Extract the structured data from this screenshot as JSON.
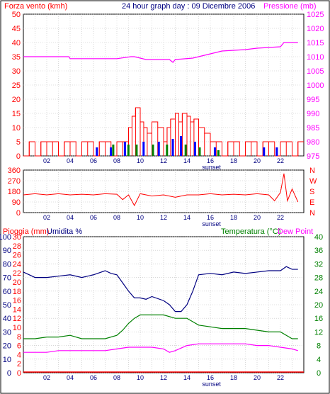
{
  "header": {
    "left_label": "Forza vento (kmh)",
    "title": "24 hour graph day : 09 Dicembre 2006",
    "right_label": "Pressione (mb)"
  },
  "colors": {
    "wind": "#ff0000",
    "gust_blue": "#0000ff",
    "gust_green": "#008000",
    "pressure": "#ff00ff",
    "direction": "#ff0000",
    "humidity": "#000080",
    "temperature": "#008000",
    "dew_point": "#ff00ff",
    "rain": "#ff0000",
    "grid": "#c0c0c0",
    "frame": "#000000",
    "axis_text_red": "#ff0000",
    "axis_text_magenta": "#ff00ff",
    "axis_text_navy": "#000080",
    "axis_text_green": "#008000"
  },
  "x_labels": [
    "02",
    "04",
    "06",
    "08",
    "10",
    "12",
    "14",
    "16",
    "18",
    "20",
    "22"
  ],
  "sunset_label": "sunset",
  "chart_data": [
    {
      "type": "line",
      "panel": "wind_pressure",
      "ylabel_left": "Forza vento (kmh)",
      "ylabel_right": "Pressione (mb)",
      "ylim_left": [
        0,
        50
      ],
      "ylim_right": [
        975,
        1025
      ],
      "y_ticks_left": [
        "0",
        "5",
        "10",
        "15",
        "20",
        "25",
        "30",
        "35",
        "40",
        "45",
        "50"
      ],
      "y_ticks_right": [
        "975",
        "980",
        "985",
        "990",
        "995",
        "1000",
        "1005",
        "1010",
        "1015",
        "1020",
        "1025"
      ],
      "xlim": [
        0,
        24
      ],
      "series": [
        {
          "name": "Pressione (mb)",
          "x": [
            0,
            3.9,
            4.0,
            8.0,
            9.2,
            9.5,
            10.5,
            12.5,
            12.8,
            13.0,
            14.5,
            15.5,
            17.0,
            19.0,
            20.0,
            22.0,
            22.3,
            23.5
          ],
          "y": [
            1010,
            1010,
            1009.3,
            1009.3,
            1010,
            1010,
            1009,
            1009,
            1008,
            1009,
            1009.5,
            1010.5,
            1012,
            1012.5,
            1013,
            1013.5,
            1015,
            1015
          ]
        },
        {
          "name": "wind",
          "x": [
            0,
            0.5,
            1,
            1.5,
            2,
            2.5,
            3,
            3.5,
            4,
            4.5,
            5,
            5.5,
            6,
            6.5,
            7,
            7.5,
            8,
            8.5,
            9,
            9.3,
            9.6,
            10,
            10.3,
            10.6,
            11,
            11.5,
            12,
            12.3,
            12.6,
            13,
            13.3,
            13.6,
            14,
            14.3,
            14.6,
            15,
            15.5,
            16,
            16.5,
            17,
            17.5,
            18,
            18.5,
            19,
            19.5,
            20,
            20.5,
            21,
            21.5,
            22,
            22.5,
            23,
            23.5
          ],
          "y": [
            0,
            5,
            0,
            5,
            5,
            5,
            0,
            5,
            5,
            0,
            5,
            5,
            0,
            5,
            5,
            0,
            5,
            5,
            10,
            14,
            17,
            12,
            10,
            8,
            12,
            10,
            5,
            10,
            13,
            15,
            12,
            15,
            14,
            12,
            13,
            10,
            8,
            5,
            5,
            0,
            5,
            5,
            0,
            5,
            5,
            0,
            5,
            5,
            0,
            5,
            5,
            0,
            5
          ]
        }
      ]
    },
    {
      "type": "line",
      "panel": "direction",
      "ylim_left": [
        0,
        360
      ],
      "y_ticks_left": [
        "0",
        "90",
        "180",
        "270",
        "360"
      ],
      "y_ticks_right": [
        "N",
        "W",
        "S",
        "E",
        "N"
      ],
      "xlim": [
        0,
        24
      ],
      "series": [
        {
          "name": "direction",
          "x": [
            0,
            1,
            2,
            3,
            4,
            5,
            6,
            7,
            8,
            8.5,
            9,
            9.5,
            10,
            10.5,
            11,
            12,
            13,
            14,
            15,
            16,
            17,
            18,
            19,
            20,
            21,
            21.5,
            22,
            22.3,
            22.6,
            23,
            23.5
          ],
          "y": [
            150,
            160,
            150,
            160,
            150,
            155,
            150,
            160,
            155,
            110,
            150,
            60,
            160,
            150,
            140,
            150,
            130,
            150,
            150,
            160,
            150,
            155,
            150,
            160,
            150,
            100,
            170,
            330,
            100,
            200,
            90
          ]
        }
      ]
    },
    {
      "type": "line",
      "panel": "rain_hum_temp",
      "ylabel_left1": "Pioggia (mm)",
      "ylabel_left2": "Umidita %",
      "ylabel_right": "Temperatura (°C)",
      "ylabel_right2": "Dew Point",
      "ylim_left1": [
        0,
        30
      ],
      "ylim_left2": [
        0,
        100
      ],
      "ylim_right": [
        0,
        40
      ],
      "y_ticks_left1": [
        "0",
        "2",
        "4",
        "6",
        "8",
        "10",
        "12",
        "14",
        "16",
        "18",
        "20",
        "22",
        "24",
        "26",
        "28",
        "30"
      ],
      "y_ticks_left2": [
        "0",
        "10",
        "20",
        "30",
        "40",
        "50",
        "60",
        "70",
        "80",
        "90",
        "100"
      ],
      "y_ticks_right": [
        "0",
        "4",
        "8",
        "12",
        "16",
        "20",
        "24",
        "28",
        "32",
        "36",
        "40"
      ],
      "xlim": [
        0,
        24
      ],
      "series": [
        {
          "name": "Umidita %",
          "x": [
            0,
            1,
            2,
            3,
            4,
            5,
            6,
            7,
            7.5,
            8,
            8.5,
            9,
            9.5,
            10,
            10.5,
            11,
            12,
            12.5,
            13,
            13.5,
            14,
            14.5,
            15,
            16,
            17,
            18,
            19,
            20,
            21,
            22,
            22.5,
            23,
            23.5
          ],
          "y": [
            74,
            70,
            70,
            71,
            72,
            70,
            72,
            75,
            73,
            72,
            66,
            60,
            55,
            55,
            54,
            56,
            53,
            50,
            45,
            45,
            50,
            60,
            72,
            73,
            72,
            74,
            73,
            74,
            75,
            75,
            78,
            76,
            76
          ]
        },
        {
          "name": "Temperatura (°C)",
          "x": [
            0,
            1,
            2,
            3,
            4,
            5,
            6,
            7,
            8,
            8.5,
            9,
            9.5,
            10,
            11,
            12,
            13,
            14,
            14.5,
            15,
            16,
            17,
            18,
            19,
            20,
            21,
            22,
            23,
            23.5
          ],
          "y": [
            10,
            10,
            10.5,
            10.5,
            11,
            10,
            10,
            10,
            11,
            12.5,
            14.5,
            16,
            17,
            17,
            17,
            16,
            16,
            15,
            14,
            13.5,
            13,
            13,
            13,
            12.5,
            12,
            12,
            10,
            10
          ]
        },
        {
          "name": "Dew Point",
          "x": [
            0,
            1,
            2,
            3,
            4,
            5,
            6,
            7,
            8,
            9,
            10,
            11,
            12,
            12.5,
            13,
            14,
            15,
            16,
            17,
            18,
            19,
            20,
            21,
            22,
            23,
            23.5
          ],
          "y": [
            6,
            6,
            6,
            6.5,
            6.5,
            6.5,
            6.5,
            6.5,
            7,
            7.5,
            7.5,
            7.5,
            7,
            6,
            6.5,
            8,
            8.5,
            8.5,
            8.5,
            8.5,
            8.5,
            8,
            8,
            7.5,
            7,
            6.5
          ]
        },
        {
          "name": "Pioggia (mm)",
          "x": [
            0,
            24
          ],
          "y": [
            0,
            0
          ]
        }
      ]
    }
  ]
}
